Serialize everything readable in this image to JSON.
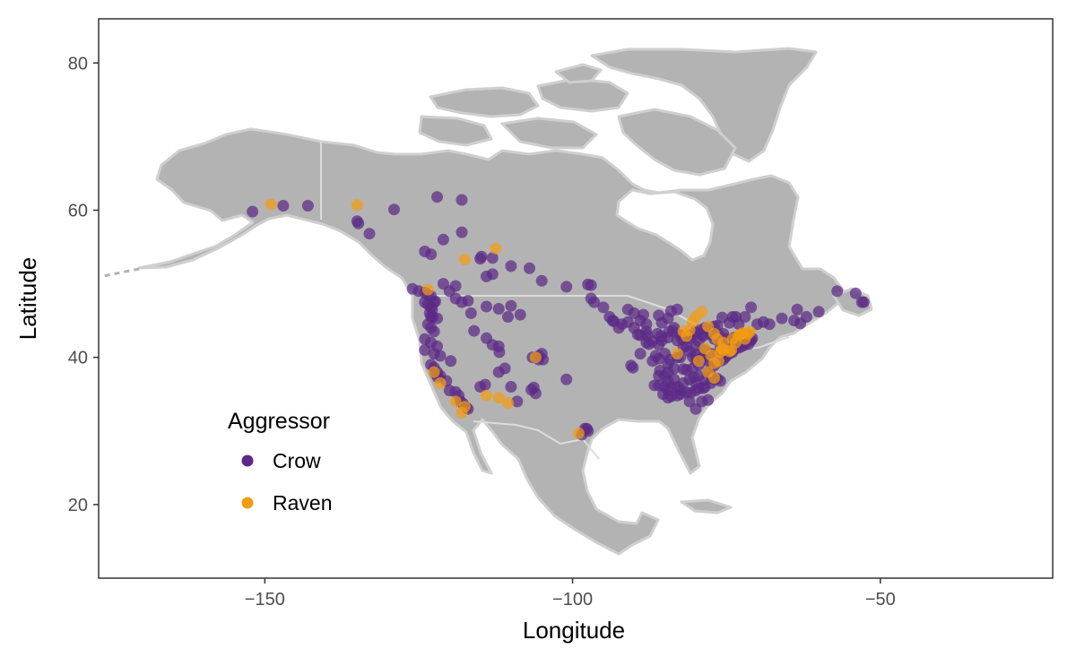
{
  "chart_data": {
    "type": "scatter",
    "title": "",
    "xlabel": "Longitude",
    "ylabel": "Latitude",
    "xlim": [
      -177,
      -22
    ],
    "ylim": [
      10,
      86
    ],
    "x_ticks": [
      -150,
      -100,
      -50
    ],
    "x_tick_labels": [
      "−150",
      "−100",
      "−50"
    ],
    "y_ticks": [
      20,
      40,
      60,
      80
    ],
    "y_tick_labels": [
      "20",
      "40",
      "60",
      "80"
    ],
    "grid": false,
    "basemap": "North America landmass in light grey",
    "legend": {
      "title": "Aggressor",
      "position": "bottom-left",
      "entries": [
        "Crow",
        "Raven"
      ]
    },
    "colors": {
      "Crow": "#5b2a86",
      "Raven": "#f39c12",
      "land": "#b3b3b3",
      "border": "#d9d9d9"
    },
    "series": [
      {
        "name": "Crow",
        "points": [
          [
            -152,
            59.8
          ],
          [
            -147,
            60.6
          ],
          [
            -143,
            60.6
          ],
          [
            -135,
            58.5
          ],
          [
            -134.8,
            58.2
          ],
          [
            -133,
            56.8
          ],
          [
            -129,
            60.1
          ],
          [
            -122,
            61.8
          ],
          [
            -118,
            61.4
          ],
          [
            -124,
            54.4
          ],
          [
            -123,
            54
          ],
          [
            -118,
            57
          ],
          [
            -121,
            56
          ],
          [
            -115,
            53.4
          ],
          [
            -114.8,
            53.7
          ],
          [
            -113,
            51.3
          ],
          [
            -114,
            51
          ],
          [
            -126,
            49.3
          ],
          [
            -125,
            49
          ],
          [
            -124,
            48.8
          ],
          [
            -123.5,
            48.5
          ],
          [
            -123,
            48.3
          ],
          [
            -124,
            47.5
          ],
          [
            -123.5,
            47.2
          ],
          [
            -123,
            46.8
          ],
          [
            -122.5,
            47.5
          ],
          [
            -122.3,
            47.6
          ],
          [
            -122.8,
            46.5
          ],
          [
            -123.2,
            46
          ],
          [
            -123,
            45.5
          ],
          [
            -122.7,
            45.5
          ],
          [
            -122,
            45.3
          ],
          [
            -123.5,
            44.5
          ],
          [
            -123,
            44
          ],
          [
            -122.5,
            43.5
          ],
          [
            -124,
            42.5
          ],
          [
            -123,
            42
          ],
          [
            -122,
            41.5
          ],
          [
            -124,
            41
          ],
          [
            -122.5,
            40.5
          ],
          [
            -123,
            39
          ],
          [
            -122.5,
            38.6
          ],
          [
            -122,
            38
          ],
          [
            -121.5,
            37.5
          ],
          [
            -122.3,
            37.8
          ],
          [
            -121.9,
            37.3
          ],
          [
            -120.5,
            36.8
          ],
          [
            -120,
            35.5
          ],
          [
            -119,
            35.3
          ],
          [
            -118.5,
            34.8
          ],
          [
            -118.2,
            34
          ],
          [
            -117.8,
            33.7
          ],
          [
            -117,
            33
          ],
          [
            -117.3,
            33.2
          ],
          [
            -119,
            48
          ],
          [
            -118,
            47.5
          ],
          [
            -117,
            47.7
          ],
          [
            -120,
            49
          ],
          [
            -121,
            50
          ],
          [
            -119,
            49.7
          ],
          [
            -116.5,
            46
          ],
          [
            -114,
            46.9
          ],
          [
            -112,
            46.6
          ],
          [
            -116,
            43.6
          ],
          [
            -114,
            42.6
          ],
          [
            -113,
            41.7
          ],
          [
            -112,
            41.5
          ],
          [
            -111.9,
            40.7
          ],
          [
            -112,
            38
          ],
          [
            -110.5,
            45.5
          ],
          [
            -108.5,
            45.8
          ],
          [
            -110,
            47
          ],
          [
            -111,
            38.5
          ],
          [
            -110,
            36
          ],
          [
            -106,
            35.1
          ],
          [
            -105.5,
            39.7
          ],
          [
            -104.8,
            39.7
          ],
          [
            -105,
            40.5
          ],
          [
            -105.5,
            40.2
          ],
          [
            -106.5,
            40
          ],
          [
            -101,
            37
          ],
          [
            -106.7,
            35.6
          ],
          [
            -106.3,
            35.9
          ],
          [
            -109,
            34
          ],
          [
            -115,
            36
          ],
          [
            -114.2,
            36.3
          ],
          [
            -119.8,
            39.5
          ],
          [
            -121.5,
            40.2
          ],
          [
            -107,
            52.1
          ],
          [
            -105,
            50.4
          ],
          [
            -113,
            53.5
          ],
          [
            -110,
            52.4
          ],
          [
            -101,
            49.6
          ],
          [
            -97.5,
            49.9
          ],
          [
            -97,
            49.8
          ],
          [
            -97,
            48
          ],
          [
            -96.5,
            47.5
          ],
          [
            -98,
            30.3
          ],
          [
            -97.7,
            30.3
          ],
          [
            -98.5,
            29.5
          ],
          [
            -97.5,
            30
          ],
          [
            -93.3,
            44.9
          ],
          [
            -93.5,
            45
          ],
          [
            -92,
            44.5
          ],
          [
            -91,
            46.5
          ],
          [
            -90,
            46
          ],
          [
            -89,
            45
          ],
          [
            -88,
            44.5
          ],
          [
            -87.9,
            43
          ],
          [
            -87.6,
            41.8
          ],
          [
            -88,
            42
          ],
          [
            -89,
            43
          ],
          [
            -90,
            44
          ],
          [
            -91,
            44.8
          ],
          [
            -92.5,
            44
          ],
          [
            -94,
            45.5
          ],
          [
            -95,
            46.8
          ],
          [
            -88.5,
            45.8
          ],
          [
            -86,
            45.7
          ],
          [
            -85.5,
            44.7
          ],
          [
            -84.5,
            45.3
          ],
          [
            -84,
            46.3
          ],
          [
            -83,
            46.5
          ],
          [
            -83.5,
            44
          ],
          [
            -84.5,
            42.7
          ],
          [
            -85.5,
            42.3
          ],
          [
            -86,
            41.7
          ],
          [
            -83,
            42.3
          ],
          [
            -82.5,
            43
          ],
          [
            -81.2,
            43
          ],
          [
            -80,
            43.5
          ],
          [
            -79.4,
            43.7
          ],
          [
            -78.5,
            44
          ],
          [
            -77,
            44.2
          ],
          [
            -76.5,
            44.3
          ],
          [
            -75.7,
            45.4
          ],
          [
            -74,
            45.5
          ],
          [
            -73.5,
            45.5
          ],
          [
            -72,
            45.5
          ],
          [
            -71,
            46.8
          ],
          [
            -70,
            44.5
          ],
          [
            -69,
            44.8
          ],
          [
            -68,
            44.5
          ],
          [
            -66,
            45.3
          ],
          [
            -64,
            45
          ],
          [
            -63,
            44.6
          ],
          [
            -62,
            45.5
          ],
          [
            -60,
            46.2
          ],
          [
            -63.5,
            46.5
          ],
          [
            -57,
            49
          ],
          [
            -54,
            48.7
          ],
          [
            -53,
            47.5
          ],
          [
            -52.7,
            47.5
          ],
          [
            -84,
            34.7
          ],
          [
            -84.5,
            34.5
          ],
          [
            -83,
            34.8
          ],
          [
            -82.5,
            35
          ],
          [
            -81.5,
            35.2
          ],
          [
            -80.8,
            35.2
          ],
          [
            -80,
            35.5
          ],
          [
            -79.5,
            35.8
          ],
          [
            -78.8,
            35.8
          ],
          [
            -78.5,
            36
          ],
          [
            -77.5,
            36.5
          ],
          [
            -77,
            37
          ],
          [
            -76.5,
            37.1
          ],
          [
            -76,
            36.8
          ],
          [
            -77.5,
            37.5
          ],
          [
            -78,
            38
          ],
          [
            -77,
            38.9
          ],
          [
            -77.2,
            39
          ],
          [
            -76.6,
            39.3
          ],
          [
            -76,
            39.5
          ],
          [
            -75.5,
            39.7
          ],
          [
            -75.2,
            40
          ],
          [
            -75,
            40.3
          ],
          [
            -74.5,
            40.5
          ],
          [
            -74,
            40.7
          ],
          [
            -73.9,
            41
          ],
          [
            -73.5,
            41.2
          ],
          [
            -73,
            41.3
          ],
          [
            -72.5,
            41.5
          ],
          [
            -72,
            41.7
          ],
          [
            -71.4,
            41.8
          ],
          [
            -71,
            42.3
          ],
          [
            -71.1,
            42.4
          ],
          [
            -70.8,
            42.6
          ],
          [
            -71.5,
            43
          ],
          [
            -72.5,
            42.8
          ],
          [
            -73.7,
            42.7
          ],
          [
            -74,
            42.5
          ],
          [
            -75,
            42.5
          ],
          [
            -76,
            42.1
          ],
          [
            -77,
            42.5
          ],
          [
            -77.6,
            43.1
          ],
          [
            -78.8,
            42.9
          ],
          [
            -79.5,
            42.2
          ],
          [
            -80,
            41.5
          ],
          [
            -80,
            40.4
          ],
          [
            -81,
            40.8
          ],
          [
            -81.5,
            41.5
          ],
          [
            -82,
            41.4
          ],
          [
            -82.5,
            40
          ],
          [
            -83,
            40
          ],
          [
            -84.5,
            39.1
          ],
          [
            -84.2,
            39.7
          ],
          [
            -85,
            40.5
          ],
          [
            -86,
            39.8
          ],
          [
            -85.8,
            38.2
          ],
          [
            -84.5,
            38
          ],
          [
            -83.5,
            38.5
          ],
          [
            -82,
            38.4
          ],
          [
            -81.5,
            38.3
          ],
          [
            -80.5,
            38.5
          ],
          [
            -79.5,
            39
          ],
          [
            -79,
            39.7
          ],
          [
            -78,
            39.5
          ],
          [
            -77.5,
            40.5
          ],
          [
            -76.5,
            40.3
          ],
          [
            -76,
            41.3
          ],
          [
            -75.7,
            41.4
          ],
          [
            -78.5,
            41
          ],
          [
            -79,
            40
          ],
          [
            -80,
            39.6
          ],
          [
            -80.5,
            40.1
          ],
          [
            -80.3,
            37.3
          ],
          [
            -79.5,
            37.5
          ],
          [
            -78.5,
            37
          ],
          [
            -80,
            36.5
          ],
          [
            -81,
            37
          ],
          [
            -82,
            36.5
          ],
          [
            -83,
            36
          ],
          [
            -84,
            36
          ],
          [
            -85,
            36
          ],
          [
            -86,
            36.2
          ],
          [
            -86.7,
            36.2
          ],
          [
            -85.3,
            35
          ],
          [
            -84.5,
            35.5
          ],
          [
            -82.5,
            35.6
          ],
          [
            -81,
            34
          ],
          [
            -80,
            33
          ],
          [
            -79,
            34
          ],
          [
            -78,
            34.2
          ],
          [
            -83.5,
            37
          ],
          [
            -85,
            37.5
          ],
          [
            -84.5,
            36.8
          ],
          [
            -86,
            37.5
          ],
          [
            -74.5,
            42
          ],
          [
            -73.8,
            41.7
          ],
          [
            -72.7,
            42.1
          ],
          [
            -72,
            43
          ],
          [
            -73,
            44.5
          ],
          [
            -74.5,
            44.7
          ],
          [
            -75.5,
            43.2
          ],
          [
            -76.2,
            43
          ],
          [
            -79,
            43.1
          ],
          [
            -81,
            42.6
          ],
          [
            -80.5,
            42.9
          ],
          [
            -82.2,
            42.5
          ],
          [
            -83.7,
            43.6
          ],
          [
            -84.3,
            43.5
          ],
          [
            -86.2,
            43.2
          ],
          [
            -87,
            42.2
          ],
          [
            -85.6,
            42.9
          ],
          [
            -88,
            43.5
          ],
          [
            -89.4,
            43.1
          ],
          [
            -90.2,
            38.6
          ],
          [
            -90.5,
            38.9
          ],
          [
            -89,
            40.5
          ],
          [
            -87,
            39.5
          ],
          [
            -86.5,
            40.2
          ]
        ]
      },
      {
        "name": "Raven",
        "points": [
          [
            -149,
            60.8
          ],
          [
            -135,
            60.7
          ],
          [
            -112.5,
            54.8
          ],
          [
            -117.5,
            53.3
          ],
          [
            -123.5,
            49.2
          ],
          [
            -122.5,
            38
          ],
          [
            -121.5,
            36.5
          ],
          [
            -118,
            32.5
          ],
          [
            -117.5,
            33.3
          ],
          [
            -119,
            34
          ],
          [
            -114,
            34.8
          ],
          [
            -112,
            34.5
          ],
          [
            -110.5,
            33.8
          ],
          [
            -106,
            40
          ],
          [
            -99,
            29.7
          ],
          [
            -83,
            40.5
          ],
          [
            -79,
            46.2
          ],
          [
            -80,
            45.5
          ],
          [
            -80.5,
            44.8
          ],
          [
            -81,
            43.7
          ],
          [
            -81.5,
            42.9
          ],
          [
            -82,
            43.5
          ],
          [
            -78,
            44.2
          ],
          [
            -77,
            43.2
          ],
          [
            -78.5,
            41.2
          ],
          [
            -77.5,
            40.3
          ],
          [
            -77,
            39.2
          ],
          [
            -76.3,
            39.5
          ],
          [
            -76,
            40.7
          ],
          [
            -75.8,
            41.2
          ],
          [
            -75.5,
            41
          ],
          [
            -74.2,
            41
          ],
          [
            -73.5,
            42
          ],
          [
            -72,
            42.5
          ],
          [
            -71.5,
            43.2
          ],
          [
            -72.3,
            43.3
          ],
          [
            -72.8,
            43.1
          ],
          [
            -73,
            43
          ],
          [
            -74,
            42.5
          ],
          [
            -75.5,
            42
          ],
          [
            -76.5,
            42.5
          ],
          [
            -79.5,
            39.5
          ],
          [
            -78,
            38
          ],
          [
            -77,
            37.2
          ],
          [
            -74.5,
            40.8
          ],
          [
            -71.2,
            43.5
          ]
        ]
      }
    ]
  }
}
